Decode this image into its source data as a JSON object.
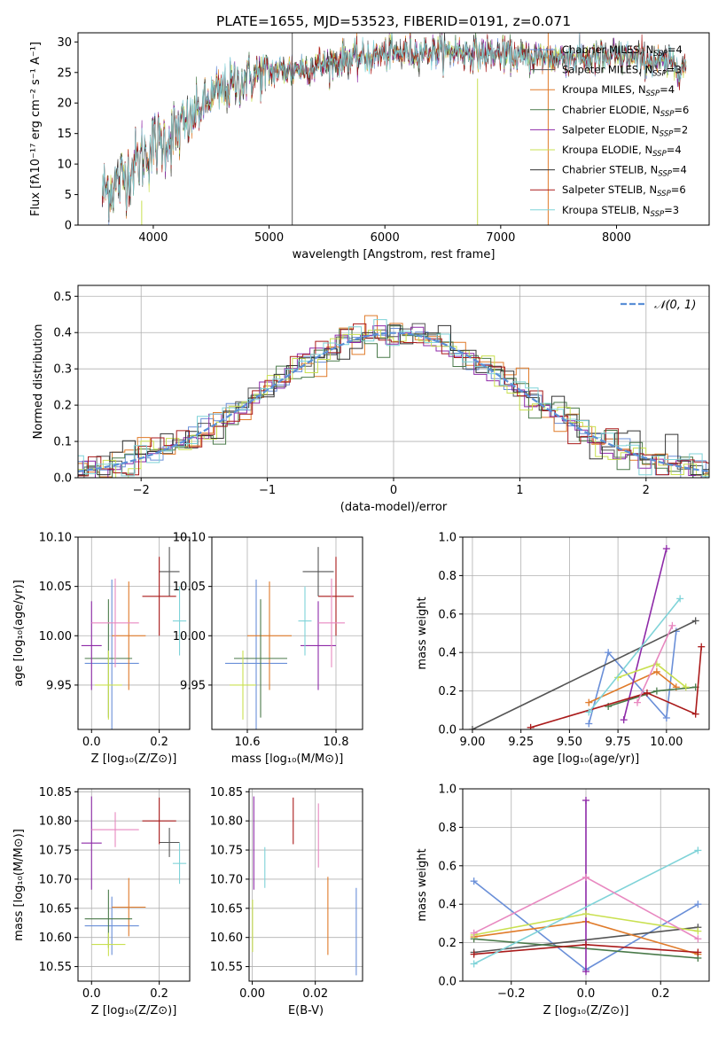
{
  "colors": {
    "c_miles": "#6a8fd8",
    "s_miles": "#555555",
    "k_miles": "#e07b2a",
    "c_elodie": "#4a7a4a",
    "s_elodie": "#8e2aa8",
    "k_elodie": "#c9e050",
    "c_stelib": "#333333",
    "s_stelib": "#aa1a1a",
    "k_stelib": "#7fd3d8",
    "pink": "#e888c0",
    "normal": "#5b8fd6"
  },
  "chart_data": [
    {
      "id": "spectrum",
      "type": "line",
      "title": "PLATE=1655, MJD=53523, FIBERID=0191, z=0.071",
      "xlabel": "wavelength [Angstrom, rest frame]",
      "ylabel": "Flux [fλ10⁻¹⁷ erg cm⁻² s⁻¹ A⁻¹]",
      "xlim": [
        3350,
        8800
      ],
      "ylim": [
        0,
        31.5
      ],
      "xticks": [
        "4000",
        "5000",
        "6000",
        "7000",
        "8000"
      ],
      "yticks": [
        "0",
        "5",
        "10",
        "15",
        "20",
        "25",
        "30"
      ],
      "continuum": {
        "x": [
          3550,
          3600,
          3700,
          3800,
          3900,
          4000,
          4100,
          4200,
          4300,
          4400,
          4500,
          4600,
          4800,
          5000,
          5200,
          5400,
          5600,
          5800,
          6000,
          6300,
          6600,
          6900,
          7200,
          7500,
          7800,
          8100,
          8400,
          8600
        ],
        "y": [
          5,
          6,
          7,
          9,
          11,
          13,
          14,
          15,
          16.5,
          19,
          21,
          22,
          24,
          25,
          25.5,
          26,
          27,
          27.5,
          28,
          28.5,
          28.5,
          28,
          27.5,
          27.5,
          27.5,
          27.5,
          26.5,
          26
        ]
      },
      "series": [
        {
          "name": "Chabrier MILES, N_SSP=4",
          "label_main": "Chabrier MILES, N",
          "label_sub": "SSP",
          "label_end": "=4",
          "color": "c_miles"
        },
        {
          "name": "Salpeter MILES, N_SSP=3",
          "label_main": "Salpeter MILES, N",
          "label_sub": "SSP",
          "label_end": "=3",
          "color": "s_miles"
        },
        {
          "name": "Kroupa MILES, N_SSP=4",
          "label_main": "Kroupa MILES, N",
          "label_sub": "SSP",
          "label_end": "=4",
          "color": "k_miles"
        },
        {
          "name": "Chabrier ELODIE, N_SSP=6",
          "label_main": "Chabrier ELODIE, N",
          "label_sub": "SSP",
          "label_end": "=6",
          "color": "c_elodie"
        },
        {
          "name": "Salpeter ELODIE, N_SSP=2",
          "label_main": "Salpeter ELODIE, N",
          "label_sub": "SSP",
          "label_end": "=2",
          "color": "s_elodie"
        },
        {
          "name": "Kroupa ELODIE, N_SSP=4",
          "label_main": "Kroupa ELODIE, N",
          "label_sub": "SSP",
          "label_end": "=4",
          "color": "k_elodie"
        },
        {
          "name": "Chabrier STELIB, N_SSP=4",
          "label_main": "Chabrier STELIB, N",
          "label_sub": "SSP",
          "label_end": "=4",
          "color": "c_stelib"
        },
        {
          "name": "Salpeter STELIB, N_SSP=6",
          "label_main": "Salpeter STELIB, N",
          "label_sub": "SSP",
          "label_end": "=6",
          "color": "s_stelib"
        },
        {
          "name": "Kroupa STELIB, N_SSP=3",
          "label_main": "Kroupa STELIB, N",
          "label_sub": "SSP",
          "label_end": "=3",
          "color": "k_stelib"
        }
      ],
      "spikes": [
        {
          "x": 5200,
          "y0": 0,
          "y1": 31.5,
          "color": "s_miles"
        },
        {
          "x": 3900,
          "y0": 0,
          "y1": 4,
          "color": "k_elodie"
        },
        {
          "x": 6800,
          "y0": 0,
          "y1": 24,
          "color": "k_elodie"
        },
        {
          "x": 7410,
          "y0": 0,
          "y1": 31.5,
          "color": "k_miles"
        }
      ]
    },
    {
      "id": "residuals",
      "type": "histogram",
      "xlabel": "(data-model)/error",
      "ylabel": "Normed distribution",
      "xlim": [
        -2.5,
        2.5
      ],
      "ylim": [
        0,
        0.53
      ],
      "xticks": [
        "−2",
        "−1",
        "0",
        "1",
        "2"
      ],
      "xtick_values": [
        -2,
        -1,
        0,
        1,
        2
      ],
      "yticks": [
        "0.0",
        "0.1",
        "0.2",
        "0.3",
        "0.4",
        "0.5"
      ],
      "ytick_values": [
        0,
        0.1,
        0.2,
        0.3,
        0.4,
        0.5
      ],
      "legend_label": "𝒩(0, 1)",
      "legend_loc": "upper right"
    },
    {
      "id": "age_vs_Z",
      "type": "errorbar",
      "xlabel": "Z [log₁₀(Z/Z⊙)]",
      "ylabel": "age  [log₁₀(age/yr)]",
      "xlim": [
        -0.04,
        0.29
      ],
      "ylim": [
        9.905,
        10.1
      ],
      "xticks": [
        "0.0",
        "0.2"
      ],
      "xtick_values": [
        0.0,
        0.2
      ],
      "yticks": [
        "9.95",
        "10.00",
        "10.05",
        "10.10"
      ],
      "ytick_values": [
        9.95,
        10.0,
        10.05,
        10.1
      ],
      "points": [
        {
          "x": 0.06,
          "y": 9.972,
          "xe": 0.08,
          "ye": 0.085,
          "color": "c_miles"
        },
        {
          "x": 0.23,
          "y": 10.065,
          "xe": 0.03,
          "ye": 0.025,
          "color": "s_miles"
        },
        {
          "x": 0.11,
          "y": 10.0,
          "xe": 0.05,
          "ye": 0.055,
          "color": "k_miles"
        },
        {
          "x": 0.05,
          "y": 9.977,
          "xe": 0.07,
          "ye": 0.06,
          "color": "c_elodie"
        },
        {
          "x": 0.0,
          "y": 9.99,
          "xe": 0.03,
          "ye": 0.045,
          "color": "s_elodie"
        },
        {
          "x": 0.05,
          "y": 9.95,
          "xe": 0.04,
          "ye": 0.035,
          "color": "k_elodie"
        },
        {
          "x": 0.2,
          "y": 10.04,
          "xe": 0.05,
          "ye": 0.04,
          "color": "s_stelib"
        },
        {
          "x": 0.26,
          "y": 10.015,
          "xe": 0.02,
          "ye": 0.035,
          "color": "k_stelib"
        },
        {
          "x": 0.07,
          "y": 10.013,
          "xe": 0.07,
          "ye": 0.045,
          "color": "pink"
        }
      ]
    },
    {
      "id": "age_vs_mass",
      "type": "errorbar",
      "xlabel": "mass [log₁₀(M/M⊙)]",
      "ylabel": "",
      "xlim": [
        10.52,
        10.86
      ],
      "ylim": [
        9.905,
        10.1
      ],
      "xticks": [
        "10.6",
        "10.8"
      ],
      "xtick_values": [
        10.6,
        10.8
      ],
      "yticks": [
        "9.95",
        "10.00",
        "10.05",
        "10.10"
      ],
      "ytick_values": [
        9.95,
        10.0,
        10.05,
        10.1
      ],
      "points": [
        {
          "x": 10.62,
          "y": 9.972,
          "xe": 0.07,
          "ye": 0.085,
          "color": "c_miles"
        },
        {
          "x": 10.76,
          "y": 10.065,
          "xe": 0.035,
          "ye": 0.025,
          "color": "s_miles"
        },
        {
          "x": 10.65,
          "y": 10.0,
          "xe": 0.05,
          "ye": 0.055,
          "color": "k_miles"
        },
        {
          "x": 10.63,
          "y": 9.977,
          "xe": 0.06,
          "ye": 0.06,
          "color": "c_elodie"
        },
        {
          "x": 10.76,
          "y": 9.99,
          "xe": 0.04,
          "ye": 0.045,
          "color": "s_elodie"
        },
        {
          "x": 10.59,
          "y": 9.95,
          "xe": 0.03,
          "ye": 0.035,
          "color": "k_elodie"
        },
        {
          "x": 10.8,
          "y": 10.04,
          "xe": 0.04,
          "ye": 0.04,
          "color": "s_stelib"
        },
        {
          "x": 10.73,
          "y": 10.015,
          "xe": 0.015,
          "ye": 0.035,
          "color": "k_stelib"
        },
        {
          "x": 10.79,
          "y": 10.013,
          "xe": 0.03,
          "ye": 0.045,
          "color": "pink"
        }
      ]
    },
    {
      "id": "mass_weight_vs_age",
      "type": "line",
      "xlabel": "age  [log₁₀(age/yr)]",
      "ylabel": "mass weight",
      "xlim": [
        8.95,
        10.22
      ],
      "ylim": [
        0,
        1.0
      ],
      "xticks": [
        "9.00",
        "9.25",
        "9.50",
        "9.75",
        "10.00"
      ],
      "xtick_values": [
        9.0,
        9.25,
        9.5,
        9.75,
        10.0
      ],
      "yticks": [
        "0.0",
        "0.2",
        "0.4",
        "0.6",
        "0.8",
        "1.0"
      ],
      "ytick_values": [
        0,
        0.2,
        0.4,
        0.6,
        0.8,
        1.0
      ],
      "series": [
        {
          "color": "c_miles",
          "x": [
            9.6,
            9.7,
            10.0,
            10.05
          ],
          "y": [
            0.03,
            0.4,
            0.06,
            0.51
          ]
        },
        {
          "color": "s_miles",
          "x": [
            9.0,
            10.15
          ],
          "y": [
            0.0,
            0.565
          ]
        },
        {
          "color": "k_miles",
          "x": [
            9.6,
            9.95,
            10.05
          ],
          "y": [
            0.14,
            0.3,
            0.22
          ]
        },
        {
          "color": "c_elodie",
          "x": [
            9.7,
            9.95,
            10.15
          ],
          "y": [
            0.12,
            0.2,
            0.22
          ]
        },
        {
          "color": "s_elodie",
          "x": [
            9.78,
            10.0
          ],
          "y": [
            0.05,
            0.94
          ]
        },
        {
          "color": "k_elodie",
          "x": [
            9.75,
            9.95,
            10.1
          ],
          "y": [
            0.27,
            0.34,
            0.22
          ]
        },
        {
          "color": "s_stelib",
          "x": [
            9.3,
            9.9,
            10.15,
            10.18
          ],
          "y": [
            0.01,
            0.19,
            0.08,
            0.43
          ]
        },
        {
          "color": "k_stelib",
          "x": [
            9.6,
            10.07
          ],
          "y": [
            0.09,
            0.68
          ]
        },
        {
          "color": "pink",
          "x": [
            9.85,
            10.03
          ],
          "y": [
            0.14,
            0.54
          ]
        }
      ]
    },
    {
      "id": "mass_vs_Z",
      "type": "errorbar",
      "xlabel": "Z [log₁₀(Z/Z⊙)]",
      "ylabel": "mass [log₁₀(M/M⊙)]",
      "xlim": [
        -0.04,
        0.29
      ],
      "ylim": [
        10.525,
        10.855
      ],
      "xticks": [
        "0.0",
        "0.2"
      ],
      "xtick_values": [
        0.0,
        0.2
      ],
      "yticks": [
        "10.55",
        "10.60",
        "10.65",
        "10.70",
        "10.75",
        "10.80",
        "10.85"
      ],
      "ytick_values": [
        10.55,
        10.6,
        10.65,
        10.7,
        10.75,
        10.8,
        10.85
      ],
      "points": [
        {
          "x": 0.06,
          "y": 10.62,
          "xe": 0.08,
          "ye": 0.05,
          "color": "c_miles"
        },
        {
          "x": 0.23,
          "y": 10.763,
          "xe": 0.03,
          "ye": 0.025,
          "color": "s_miles"
        },
        {
          "x": 0.11,
          "y": 10.652,
          "xe": 0.05,
          "ye": 0.05,
          "color": "k_miles"
        },
        {
          "x": 0.05,
          "y": 10.632,
          "xe": 0.07,
          "ye": 0.05,
          "color": "c_elodie"
        },
        {
          "x": 0.0,
          "y": 10.762,
          "xe": 0.03,
          "ye": 0.08,
          "color": "s_elodie"
        },
        {
          "x": 0.05,
          "y": 10.588,
          "xe": 0.05,
          "ye": 0.02,
          "color": "k_elodie"
        },
        {
          "x": 0.2,
          "y": 10.8,
          "xe": 0.05,
          "ye": 0.04,
          "color": "s_stelib"
        },
        {
          "x": 0.26,
          "y": 10.727,
          "xe": 0.02,
          "ye": 0.035,
          "color": "k_stelib"
        },
        {
          "x": 0.07,
          "y": 10.785,
          "xe": 0.07,
          "ye": 0.03,
          "color": "pink"
        }
      ]
    },
    {
      "id": "mass_vs_EBV",
      "type": "errorbar",
      "xlabel": "E(B-V)",
      "ylabel": "",
      "xlim": [
        -0.001,
        0.035
      ],
      "ylim": [
        10.525,
        10.855
      ],
      "xticks": [
        "0.00",
        "0.02"
      ],
      "xtick_values": [
        0.0,
        0.02
      ],
      "yticks": [
        "10.55",
        "10.60",
        "10.65",
        "10.70",
        "10.75",
        "10.80",
        "10.85"
      ],
      "ytick_values": [
        10.55,
        10.6,
        10.65,
        10.7,
        10.75,
        10.8,
        10.85
      ],
      "points": [
        {
          "x": 0.033,
          "y": 10.61,
          "xe": 0,
          "ye": 0.075,
          "color": "c_miles"
        },
        {
          "x": 0.024,
          "y": 10.637,
          "xe": 0,
          "ye": 0.067,
          "color": "k_miles"
        },
        {
          "x": 0.0005,
          "y": 10.762,
          "xe": 0,
          "ye": 0.08,
          "color": "s_elodie"
        },
        {
          "x": 0.0001,
          "y": 10.62,
          "xe": 0,
          "ye": 0.045,
          "color": "k_elodie"
        },
        {
          "x": 0.013,
          "y": 10.8,
          "xe": 0,
          "ye": 0.04,
          "color": "s_stelib"
        },
        {
          "x": 0.004,
          "y": 10.72,
          "xe": 0,
          "ye": 0.035,
          "color": "k_stelib"
        },
        {
          "x": 0.021,
          "y": 10.775,
          "xe": 0,
          "ye": 0.055,
          "color": "pink"
        }
      ]
    },
    {
      "id": "mass_weight_vs_Z",
      "type": "line",
      "xlabel": "Z [log₁₀(Z/Z⊙)]",
      "ylabel": "mass weight",
      "xlim": [
        -0.33,
        0.33
      ],
      "ylim": [
        0,
        1.0
      ],
      "xticks": [
        "−0.2",
        "0.0",
        "0.2"
      ],
      "xtick_values": [
        -0.2,
        0.0,
        0.2
      ],
      "yticks": [
        "0.0",
        "0.2",
        "0.4",
        "0.6",
        "0.8",
        "1.0"
      ],
      "ytick_values": [
        0,
        0.2,
        0.4,
        0.6,
        0.8,
        1.0
      ],
      "series": [
        {
          "color": "c_miles",
          "x": [
            -0.3,
            0.0,
            0.3
          ],
          "y": [
            0.52,
            0.06,
            0.4
          ]
        },
        {
          "color": "s_miles",
          "x": [
            -0.3,
            0.3
          ],
          "y": [
            0.15,
            0.28
          ]
        },
        {
          "color": "k_miles",
          "x": [
            -0.3,
            0.0,
            0.3
          ],
          "y": [
            0.23,
            0.31,
            0.14
          ]
        },
        {
          "color": "c_elodie",
          "x": [
            -0.3,
            0.3
          ],
          "y": [
            0.22,
            0.12
          ]
        },
        {
          "color": "s_elodie",
          "x": [
            0.0,
            0.0
          ],
          "y": [
            0.05,
            0.94
          ]
        },
        {
          "color": "k_elodie",
          "x": [
            -0.3,
            0.0,
            0.3
          ],
          "y": [
            0.24,
            0.35,
            0.26
          ]
        },
        {
          "color": "s_stelib",
          "x": [
            -0.3,
            0.0,
            0.3
          ],
          "y": [
            0.14,
            0.19,
            0.15
          ]
        },
        {
          "color": "k_stelib",
          "x": [
            -0.3,
            0.3
          ],
          "y": [
            0.09,
            0.68
          ]
        },
        {
          "color": "pink",
          "x": [
            -0.3,
            0.0,
            0.3
          ],
          "y": [
            0.25,
            0.54,
            0.22
          ]
        }
      ]
    }
  ]
}
